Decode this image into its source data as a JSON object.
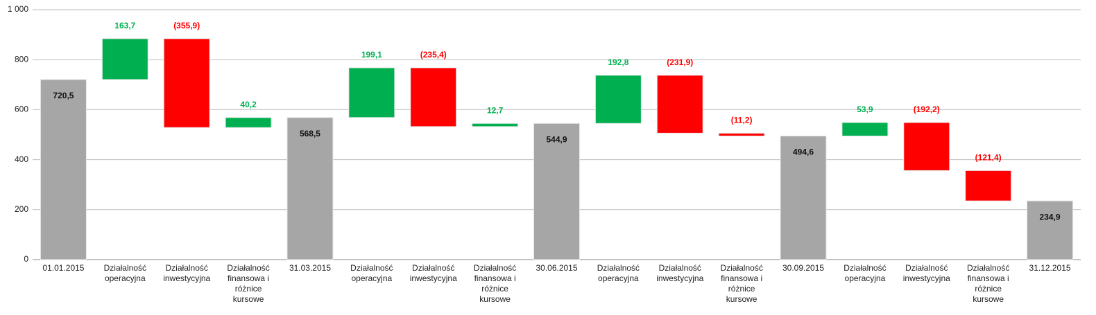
{
  "chart_data": {
    "type": "waterfall",
    "categories": [
      "01.01.2015",
      "Działalność operacyjna",
      "Działalność inwestycyjna",
      "Działalność finansowa i różnice kursowe",
      "31.03.2015",
      "Działalność operacyjna",
      "Działalność inwestycyjna",
      "Działalność finansowa i różnice kursowe",
      "30.06.2015",
      "Działalność operacyjna",
      "Działalność inwestycyjna",
      "Działalność finansowa i różnice kursowe",
      "30.09.2015",
      "Działalność operacyjna",
      "Działalność inwestycyjna",
      "Działalność finansowa i różnice kursowe",
      "31.12.2015"
    ],
    "values": [
      720.5,
      163.7,
      -355.9,
      40.2,
      568.5,
      199.1,
      -235.4,
      12.7,
      544.9,
      192.8,
      -231.9,
      -11.2,
      494.6,
      53.9,
      -192.2,
      -121.4,
      234.9
    ],
    "value_labels": [
      "720,5",
      "163,7",
      "(355,9)",
      "40,2",
      "568,5",
      "199,1",
      "(235,4)",
      "12,7",
      "544,9",
      "192,8",
      "(231,9)",
      "(11,2)",
      "494,6",
      "53,9",
      "(192,2)",
      "(121,4)",
      "234,9"
    ],
    "is_total": [
      true,
      false,
      false,
      false,
      true,
      false,
      false,
      false,
      true,
      false,
      false,
      false,
      true,
      false,
      false,
      false,
      true
    ],
    "colors": {
      "total": "#a6a6a6",
      "increase": "#00b050",
      "decrease": "#ff0000"
    },
    "ylim": [
      0,
      1000
    ],
    "yticks": [
      0,
      200,
      400,
      600,
      800,
      {
        "value": 1000,
        "label": "1 000"
      }
    ],
    "grid": true
  }
}
